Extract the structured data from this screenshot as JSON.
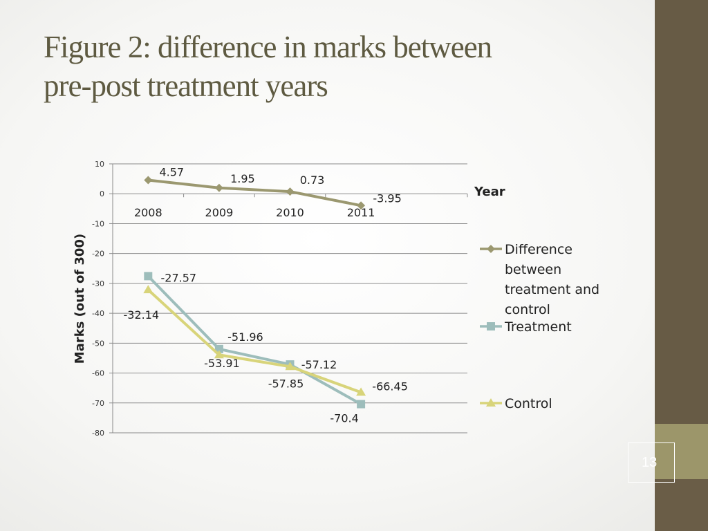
{
  "slide": {
    "title_line1": "Figure 2: difference in marks between",
    "title_line2": "pre-post treatment years",
    "page_number": "13"
  },
  "colors": {
    "title": "#5e5a41",
    "sidebar": "#675b45",
    "sidebar_band": "#9c966a",
    "difference": "#9b9870",
    "treatment": "#9dbdbb",
    "control": "#d8d47a"
  },
  "chart_data": {
    "type": "line",
    "x": [
      "2008",
      "2009",
      "2010",
      "2011"
    ],
    "xlabel": "Year",
    "ylabel": "Marks (out of 300)",
    "ylim": [
      -80,
      10
    ],
    "yticks": [
      10,
      0,
      -10,
      -20,
      -30,
      -40,
      -50,
      -60,
      -70,
      -80
    ],
    "grid": true,
    "legend_position": "right",
    "series": [
      {
        "name": "Difference between treatment and control",
        "legend_lines": [
          "Difference",
          "between",
          "treatment and",
          "control"
        ],
        "marker": "diamond",
        "values": [
          4.57,
          1.95,
          0.73,
          -3.95
        ],
        "labels": [
          "4.57",
          "1.95",
          "0.73",
          "-3.95"
        ]
      },
      {
        "name": "Treatment",
        "legend_lines": [
          "Treatment"
        ],
        "marker": "square",
        "values": [
          -27.57,
          -51.96,
          -57.12,
          -70.4
        ],
        "labels": [
          "-27.57",
          "-51.96",
          "-57.12",
          "-70.4"
        ]
      },
      {
        "name": "Control",
        "legend_lines": [
          "Control"
        ],
        "marker": "triangle",
        "values": [
          -32.14,
          -53.91,
          -57.85,
          -66.45
        ],
        "labels": [
          "-32.14",
          "-53.91",
          "-57.85",
          "-66.45"
        ]
      }
    ]
  }
}
